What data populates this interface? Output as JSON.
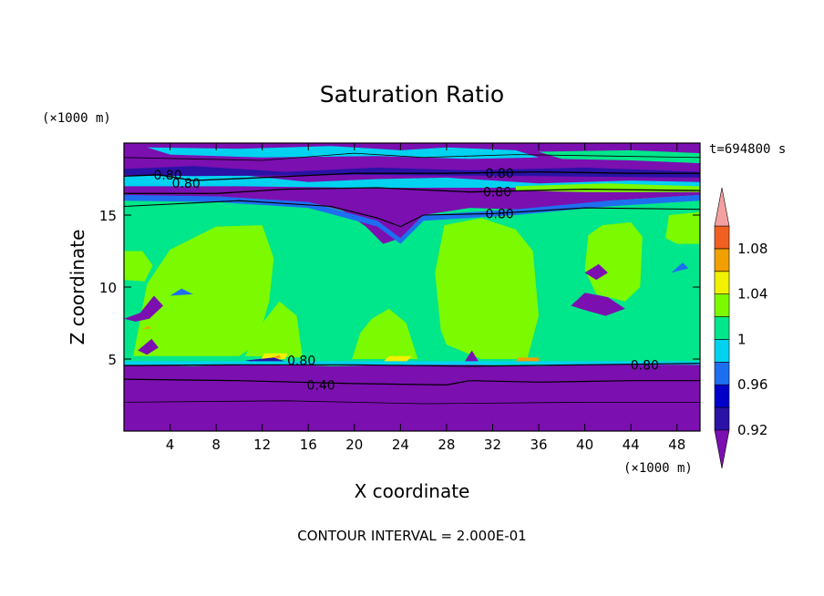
{
  "chart_data": {
    "type": "heatmap",
    "title": "Saturation Ratio",
    "xlabel": "X coordinate",
    "ylabel": "Z coordinate",
    "x_unit": "(×1000 m)",
    "y_unit": "(×1000 m)",
    "time_label": "t=694800 s",
    "footer": "CONTOUR INTERVAL = 2.000E-01",
    "xlim": [
      0,
      50
    ],
    "ylim": [
      0,
      20
    ],
    "x_ticks": [
      4,
      8,
      12,
      16,
      20,
      24,
      28,
      32,
      36,
      40,
      44,
      48
    ],
    "y_ticks": [
      5,
      10,
      15
    ],
    "colorbar": {
      "levels": [
        0.92,
        0.94,
        0.96,
        0.98,
        1.0,
        1.02,
        1.04,
        1.06,
        1.08,
        1.1
      ],
      "tick_labels": [
        "0.92",
        "0.96",
        "1",
        "1.04",
        "1.08"
      ],
      "tick_values": [
        0.92,
        0.96,
        1.0,
        1.04,
        1.08
      ],
      "colors": [
        "#7b0fb0",
        "#2a12a6",
        "#0000c8",
        "#1e6ef0",
        "#00d2f0",
        "#00e68a",
        "#7bfa00",
        "#f0f000",
        "#f0a000",
        "#f06020",
        "#e82828",
        "#f4a0a0"
      ],
      "extend": "both"
    },
    "contour_labels": [
      {
        "x": 3.8,
        "z": 17.8,
        "label": "0.80"
      },
      {
        "x": 5.4,
        "z": 17.2,
        "label": "0.80"
      },
      {
        "x": 32.6,
        "z": 17.9,
        "label": "0.80"
      },
      {
        "x": 32.4,
        "z": 16.6,
        "label": "0.80"
      },
      {
        "x": 32.6,
        "z": 15.1,
        "label": "0.80"
      },
      {
        "x": 15.4,
        "z": 4.9,
        "label": "0.80"
      },
      {
        "x": 45.2,
        "z": 4.6,
        "label": "0.80"
      },
      {
        "x": 17.1,
        "z": 3.2,
        "label": "0.40"
      }
    ]
  }
}
